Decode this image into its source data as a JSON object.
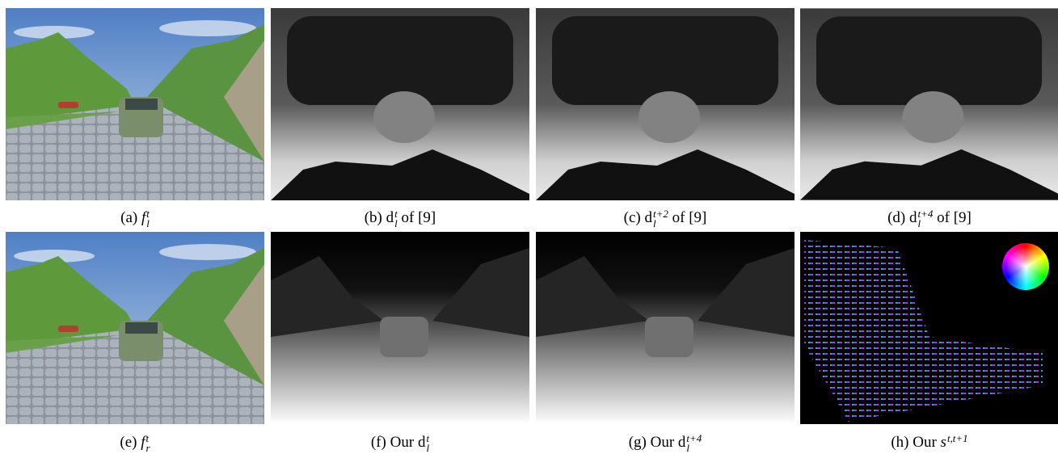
{
  "figure": {
    "panels": [
      {
        "label": "(a)",
        "symbol": "f",
        "italic": true,
        "sub": "l",
        "sup": "t"
      },
      {
        "label": "(b)",
        "symbol": "d",
        "sub": "l",
        "sup": "t",
        "post": "of [9]"
      },
      {
        "label": "(c)",
        "symbol": "d",
        "sub": "l",
        "sup": "t+2",
        "post": "of [9]"
      },
      {
        "label": "(d)",
        "symbol": "d",
        "sub": "l",
        "sup": "t+4",
        "post": "of [9]"
      },
      {
        "label": "(e)",
        "symbol": "f",
        "italic": true,
        "sub": "r",
        "sup": "t"
      },
      {
        "label": "(f)",
        "pre": "Our",
        "symbol": "d",
        "sub": "l",
        "sup": "t"
      },
      {
        "label": "(g)",
        "pre": "Our",
        "symbol": "d",
        "sub": "l",
        "sup": "t+4"
      },
      {
        "label": "(h)",
        "pre": "Our",
        "symbol": "s",
        "italic": true,
        "sup": "t,t+1"
      }
    ]
  }
}
